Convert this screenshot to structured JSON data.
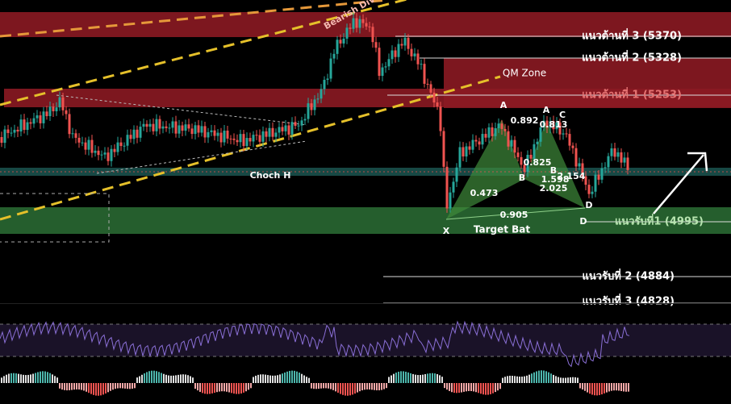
{
  "resistance_levels": [
    "แนวต้านที่ 3 (5370)",
    "แนวต้านที่ 2 (5328)",
    "แนวต้านที่ 1 (5253)"
  ],
  "support_levels": [
    "แนวรับที่1 (4995)",
    "แนวรับที่ 2 (4884)",
    "แนวรับที่ 3 (4828)"
  ],
  "labels": {
    "bearish_div": "Bearish Div",
    "qm_zone": "QM Zone",
    "choch": "Choch H",
    "target": "Target Bat"
  },
  "pattern_points": [
    "X",
    "A",
    "B",
    "C",
    "D",
    "A",
    "B",
    "C",
    "D"
  ],
  "ratios": [
    0.892,
    0.813,
    0.825,
    1.598,
    2.025,
    0.473,
    0.905,
    2.154
  ]
}
